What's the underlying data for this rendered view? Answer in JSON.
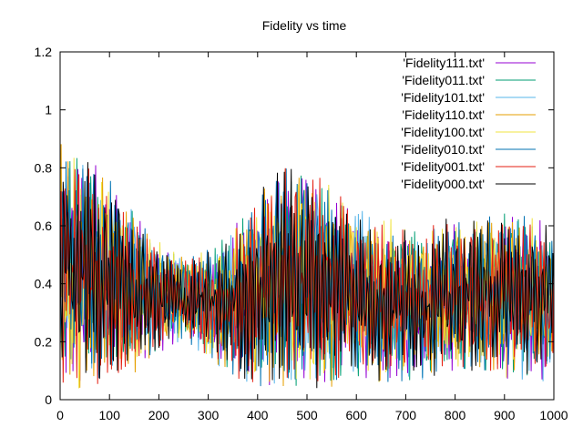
{
  "chart_data": {
    "type": "line",
    "title": "Fidelity vs time",
    "xlabel": "",
    "ylabel": "",
    "xlim": [
      0,
      1000
    ],
    "ylim": [
      0,
      1.2
    ],
    "xticks": [
      0,
      100,
      200,
      300,
      400,
      500,
      600,
      700,
      800,
      900,
      1000
    ],
    "yticks": [
      0,
      0.2,
      0.4,
      0.6,
      0.8,
      1,
      1.2
    ],
    "xtick_labels": [
      "0",
      "100",
      "200",
      "300",
      "400",
      "500",
      "600",
      "700",
      "800",
      "900",
      "1000"
    ],
    "ytick_labels": [
      "0",
      "0.2",
      "0.4",
      "0.6",
      "0.8",
      "1",
      "1.2"
    ],
    "grid": false,
    "legend_position": "top-right",
    "series": [
      {
        "name": "'Fidelity111.txt'",
        "color": "#9400d3"
      },
      {
        "name": "'Fidelity011.txt'",
        "color": "#009e73"
      },
      {
        "name": "'Fidelity101.txt'",
        "color": "#56b4e9"
      },
      {
        "name": "'Fidelity110.txt'",
        "color": "#e69f00"
      },
      {
        "name": "'Fidelity100.txt'",
        "color": "#f0e442"
      },
      {
        "name": "'Fidelity010.txt'",
        "color": "#0072b2"
      },
      {
        "name": "'Fidelity001.txt'",
        "color": "#e51e10"
      },
      {
        "name": "'Fidelity000.txt'",
        "color": "#000000"
      }
    ],
    "envelope": {
      "description": "oscillating fidelity around 0.33; wide spread early (0-150) and 400-600, narrow near 250",
      "x": [
        0,
        50,
        100,
        150,
        200,
        250,
        300,
        350,
        400,
        450,
        500,
        550,
        600,
        650,
        700,
        750,
        800,
        850,
        900,
        950,
        1000
      ],
      "upper": [
        0.9,
        0.88,
        0.78,
        0.66,
        0.55,
        0.5,
        0.52,
        0.6,
        0.72,
        0.82,
        0.82,
        0.76,
        0.68,
        0.63,
        0.62,
        0.62,
        0.63,
        0.64,
        0.65,
        0.64,
        0.63
      ],
      "lower": [
        0.02,
        0.02,
        0.05,
        0.08,
        0.14,
        0.2,
        0.14,
        0.08,
        0.04,
        0.03,
        0.03,
        0.04,
        0.05,
        0.05,
        0.06,
        0.07,
        0.08,
        0.09,
        0.07,
        0.06,
        0.06
      ]
    }
  }
}
